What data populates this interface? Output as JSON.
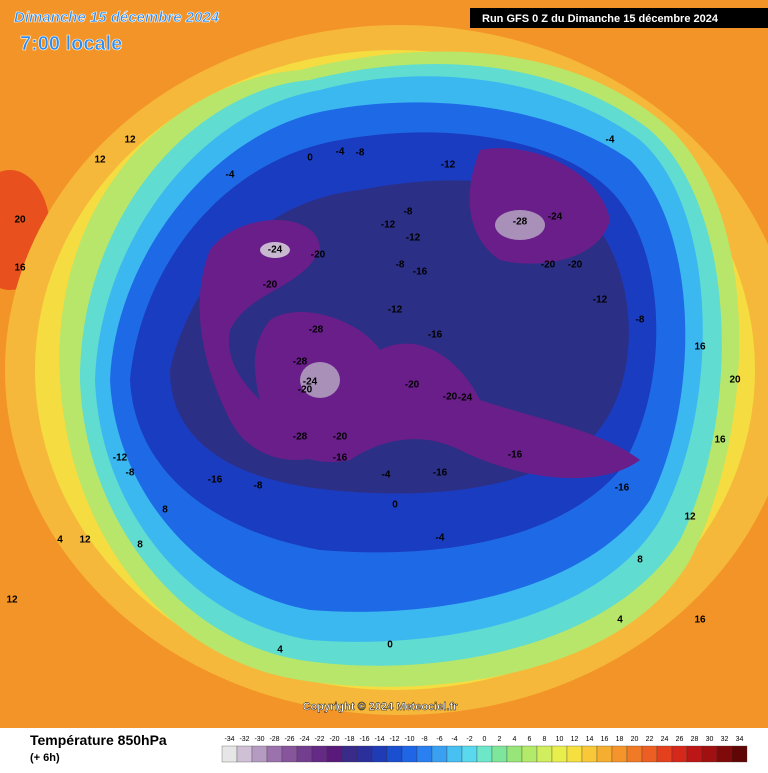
{
  "header": {
    "date": "Dimanche 15 décembre 2024",
    "time": "7:00 locale",
    "run": "Run GFS 0 Z du Dimanche 15 décembre 2024"
  },
  "map": {
    "contour_labels": [
      -20,
      -24,
      -20,
      -28,
      -28,
      -20,
      -24,
      -28,
      -20,
      -16,
      -12,
      -8,
      -20,
      -28,
      -24,
      -20,
      -16,
      -16,
      -12,
      -16,
      -12,
      -8,
      -4,
      0,
      -4,
      -8,
      -12,
      -16,
      -20,
      -24,
      -20,
      -16,
      -16,
      -12,
      -8,
      -8,
      -4,
      -4,
      0,
      4,
      8,
      12,
      16,
      20,
      12,
      8,
      4,
      0,
      12,
      16,
      20,
      16,
      12,
      8,
      4,
      16,
      12,
      -12,
      -8,
      -4
    ],
    "copyright": "Copyright © 2024 Meteociel.fr"
  },
  "legend": {
    "title": "Température 850hPa",
    "subtitle": "(+ 6h)",
    "ticks": [
      -34,
      -32,
      -30,
      -28,
      -26,
      -24,
      -22,
      -20,
      -18,
      -16,
      -14,
      -12,
      -10,
      -8,
      -6,
      -4,
      -2,
      0,
      2,
      4,
      6,
      8,
      10,
      12,
      14,
      16,
      18,
      20,
      22,
      24,
      26,
      28,
      30,
      32,
      34
    ],
    "colors": [
      "#e6e6e6",
      "#cfc0d6",
      "#b59ac2",
      "#9b72ad",
      "#86559c",
      "#743e8f",
      "#652a86",
      "#5a1a7c",
      "#3a2b8a",
      "#2a2f9c",
      "#1f3cb6",
      "#1a4fd0",
      "#1e66e6",
      "#2a80f0",
      "#3aa0f2",
      "#48c0f2",
      "#5ad8ee",
      "#6ee6c8",
      "#7ee69a",
      "#98e67a",
      "#b4ea6a",
      "#d0ee5e",
      "#e8ee4c",
      "#f6e040",
      "#f8c838",
      "#f6ae30",
      "#f4942a",
      "#f07a26",
      "#ec5e22",
      "#e4401e",
      "#d4281a",
      "#bc1616",
      "#a01010",
      "#800a0a",
      "#600606"
    ]
  }
}
